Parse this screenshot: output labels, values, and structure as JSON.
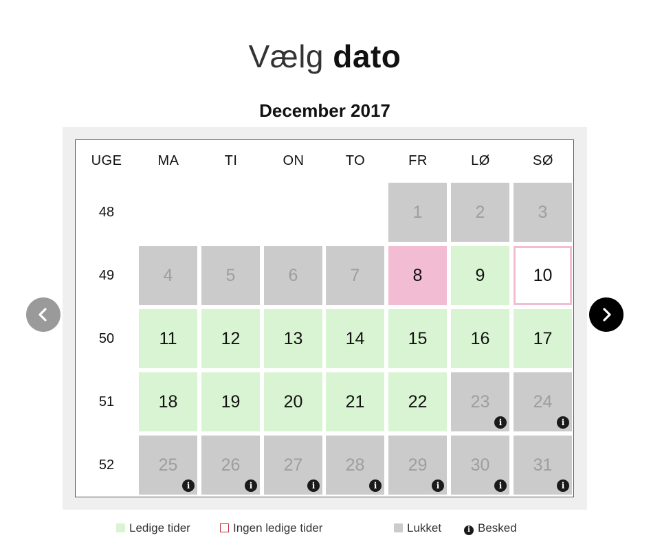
{
  "title": {
    "light": "Vælg",
    "bold": "dato"
  },
  "calendar": {
    "month_label": "December 2017",
    "headers": [
      "UGE",
      "MA",
      "TI",
      "ON",
      "TO",
      "FR",
      "LØ",
      "SØ"
    ],
    "weeks": [
      {
        "week": "48",
        "days": [
          null,
          null,
          null,
          null,
          {
            "day": "1",
            "status": "closed",
            "info": false
          },
          {
            "day": "2",
            "status": "closed",
            "info": false
          },
          {
            "day": "3",
            "status": "closed",
            "info": false
          }
        ]
      },
      {
        "week": "49",
        "days": [
          {
            "day": "4",
            "status": "closed",
            "info": false
          },
          {
            "day": "5",
            "status": "closed",
            "info": false
          },
          {
            "day": "6",
            "status": "closed",
            "info": false
          },
          {
            "day": "7",
            "status": "closed",
            "info": false
          },
          {
            "day": "8",
            "status": "selected",
            "info": false
          },
          {
            "day": "9",
            "status": "available",
            "info": false
          },
          {
            "day": "10",
            "status": "none",
            "info": false
          }
        ]
      },
      {
        "week": "50",
        "days": [
          {
            "day": "11",
            "status": "available",
            "info": false
          },
          {
            "day": "12",
            "status": "available",
            "info": false
          },
          {
            "day": "13",
            "status": "available",
            "info": false
          },
          {
            "day": "14",
            "status": "available",
            "info": false
          },
          {
            "day": "15",
            "status": "available",
            "info": false
          },
          {
            "day": "16",
            "status": "available",
            "info": false
          },
          {
            "day": "17",
            "status": "available",
            "info": false
          }
        ]
      },
      {
        "week": "51",
        "days": [
          {
            "day": "18",
            "status": "available",
            "info": false
          },
          {
            "day": "19",
            "status": "available",
            "info": false
          },
          {
            "day": "20",
            "status": "available",
            "info": false
          },
          {
            "day": "21",
            "status": "available",
            "info": false
          },
          {
            "day": "22",
            "status": "available",
            "info": false
          },
          {
            "day": "23",
            "status": "closed",
            "info": true
          },
          {
            "day": "24",
            "status": "closed",
            "info": true
          }
        ]
      },
      {
        "week": "52",
        "days": [
          {
            "day": "25",
            "status": "closed",
            "info": true
          },
          {
            "day": "26",
            "status": "closed",
            "info": true
          },
          {
            "day": "27",
            "status": "closed",
            "info": true
          },
          {
            "day": "28",
            "status": "closed",
            "info": true
          },
          {
            "day": "29",
            "status": "closed",
            "info": true
          },
          {
            "day": "30",
            "status": "closed",
            "info": true
          },
          {
            "day": "31",
            "status": "closed",
            "info": true
          }
        ]
      }
    ]
  },
  "nav": {
    "prev_icon": "chevron-left-icon",
    "next_icon": "chevron-right-icon"
  },
  "legend": {
    "available": "Ledige tider",
    "none": "Ingen ledige tider",
    "closed": "Lukket",
    "info": "Besked",
    "info_glyph": "i"
  },
  "colors": {
    "available": "#d8f4d2",
    "closed": "#cbcbcb",
    "selected": "#f2bcd2",
    "none_border": "#c0303a"
  }
}
